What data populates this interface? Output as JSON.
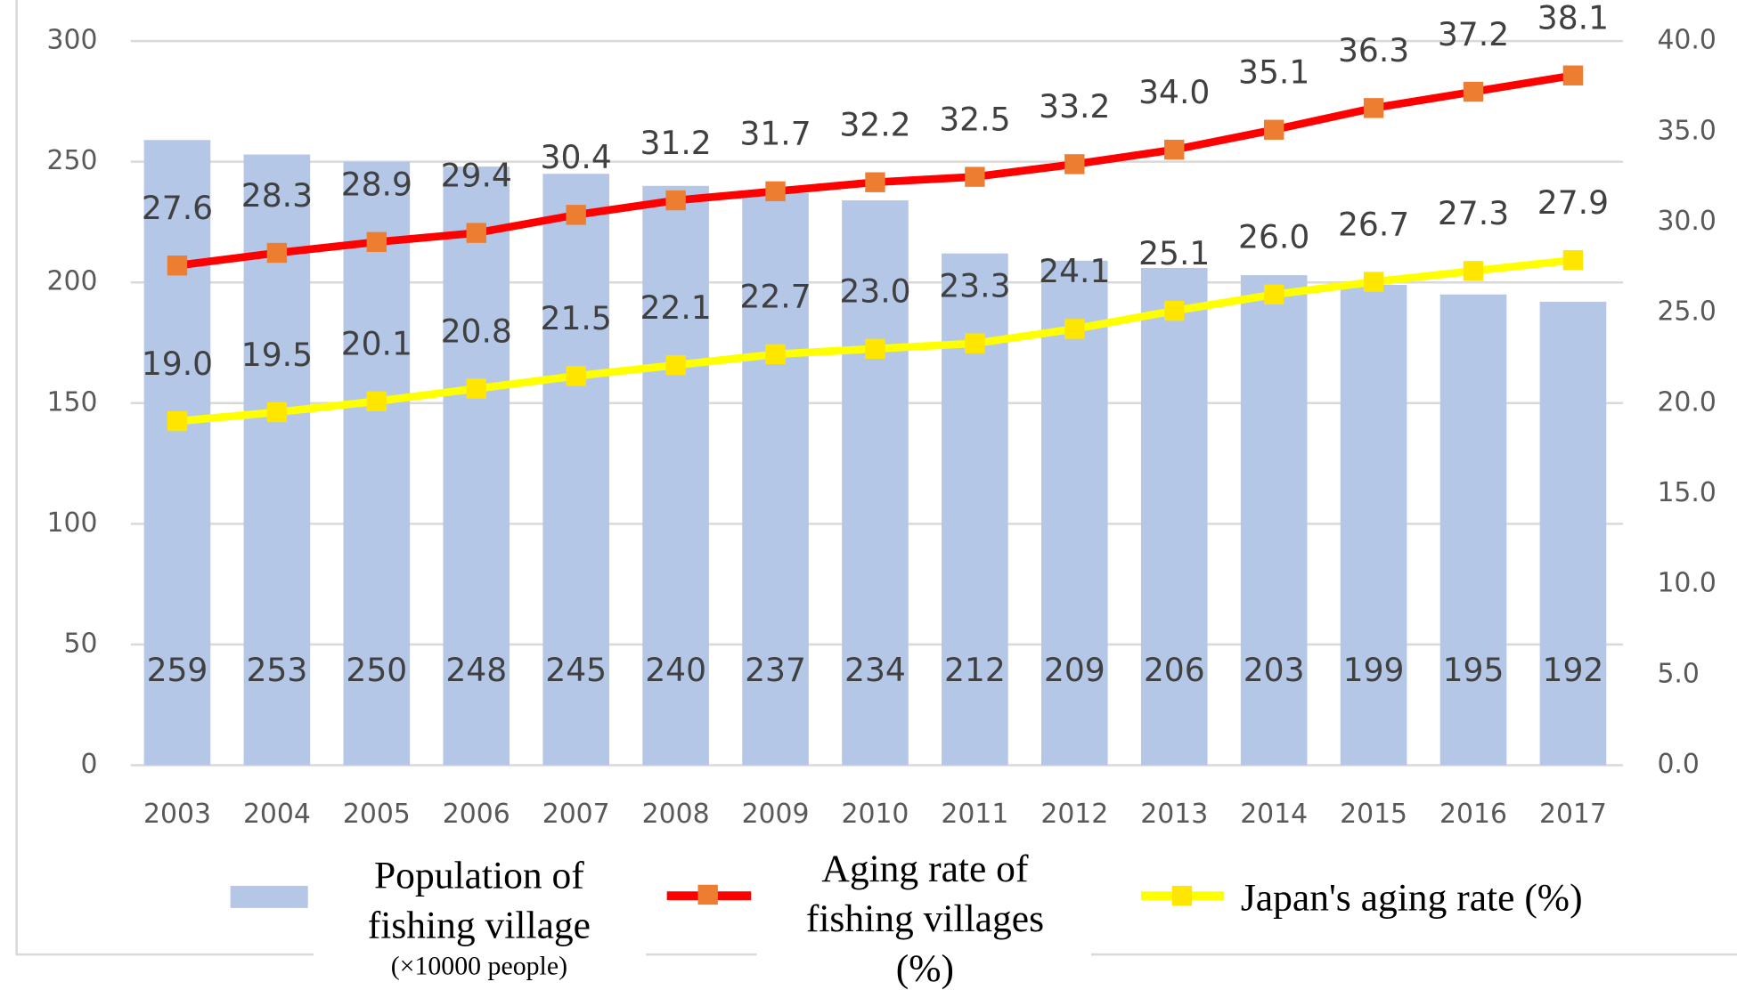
{
  "chart_data": {
    "type": "bar_line",
    "categories": [
      "2003",
      "2004",
      "2005",
      "2006",
      "2007",
      "2008",
      "2009",
      "2010",
      "2011",
      "2012",
      "2013",
      "2014",
      "2015",
      "2016",
      "2017"
    ],
    "series": [
      {
        "name": "Population of fishing village",
        "type": "bar",
        "color": "#b4c7e7",
        "values": [
          259,
          253,
          250,
          248,
          245,
          240,
          237,
          234,
          212,
          209,
          206,
          203,
          199,
          195,
          192
        ]
      },
      {
        "name": "Aging rate of fishing villages (%)",
        "type": "line",
        "axis": "y2",
        "color": "#ff0000",
        "marker_color": "#ed7d31",
        "values": [
          27.6,
          28.3,
          28.9,
          29.4,
          30.4,
          31.2,
          31.7,
          32.2,
          32.5,
          33.2,
          34.0,
          35.1,
          36.3,
          37.2,
          38.1
        ],
        "value_labels": [
          "27.6",
          "28.3",
          "28.9",
          "29.4",
          "30.4",
          "31.2",
          "31.7",
          "32.2",
          "32.5",
          "33.2",
          "34.0",
          "35.1",
          "36.3",
          "37.2",
          "38.1"
        ]
      },
      {
        "name": "Japan's aging rate (%)",
        "type": "line",
        "axis": "y2",
        "color": "#ffff00",
        "marker_color": "#ffe600",
        "values": [
          19.0,
          19.5,
          20.1,
          20.8,
          21.5,
          22.1,
          22.7,
          23.0,
          23.3,
          24.1,
          25.1,
          26.0,
          26.7,
          27.3,
          27.9
        ],
        "value_labels": [
          "19.0",
          "19.5",
          "20.1",
          "20.8",
          "21.5",
          "22.1",
          "22.7",
          "23.0",
          "23.3",
          "24.1",
          "25.1",
          "26.0",
          "26.7",
          "27.3",
          "27.9"
        ]
      }
    ],
    "legend_note": "(×10000 people)",
    "ylim": [
      0,
      300
    ],
    "yticks": [
      0,
      50,
      100,
      150,
      200,
      250,
      300
    ],
    "y2lim": [
      0,
      40
    ],
    "y2ticks": [
      {
        "value": 0,
        "label": "0.0"
      },
      {
        "value": 5,
        "label": "5.0"
      },
      {
        "value": 10,
        "label": "10.0"
      },
      {
        "value": 15,
        "label": "15.0"
      },
      {
        "value": 20,
        "label": "20.0"
      },
      {
        "value": 25,
        "label": "25.0"
      },
      {
        "value": 30,
        "label": "30.0"
      },
      {
        "value": 35,
        "label": "35.0"
      },
      {
        "value": 40,
        "label": "40.0"
      }
    ],
    "grid": true
  }
}
